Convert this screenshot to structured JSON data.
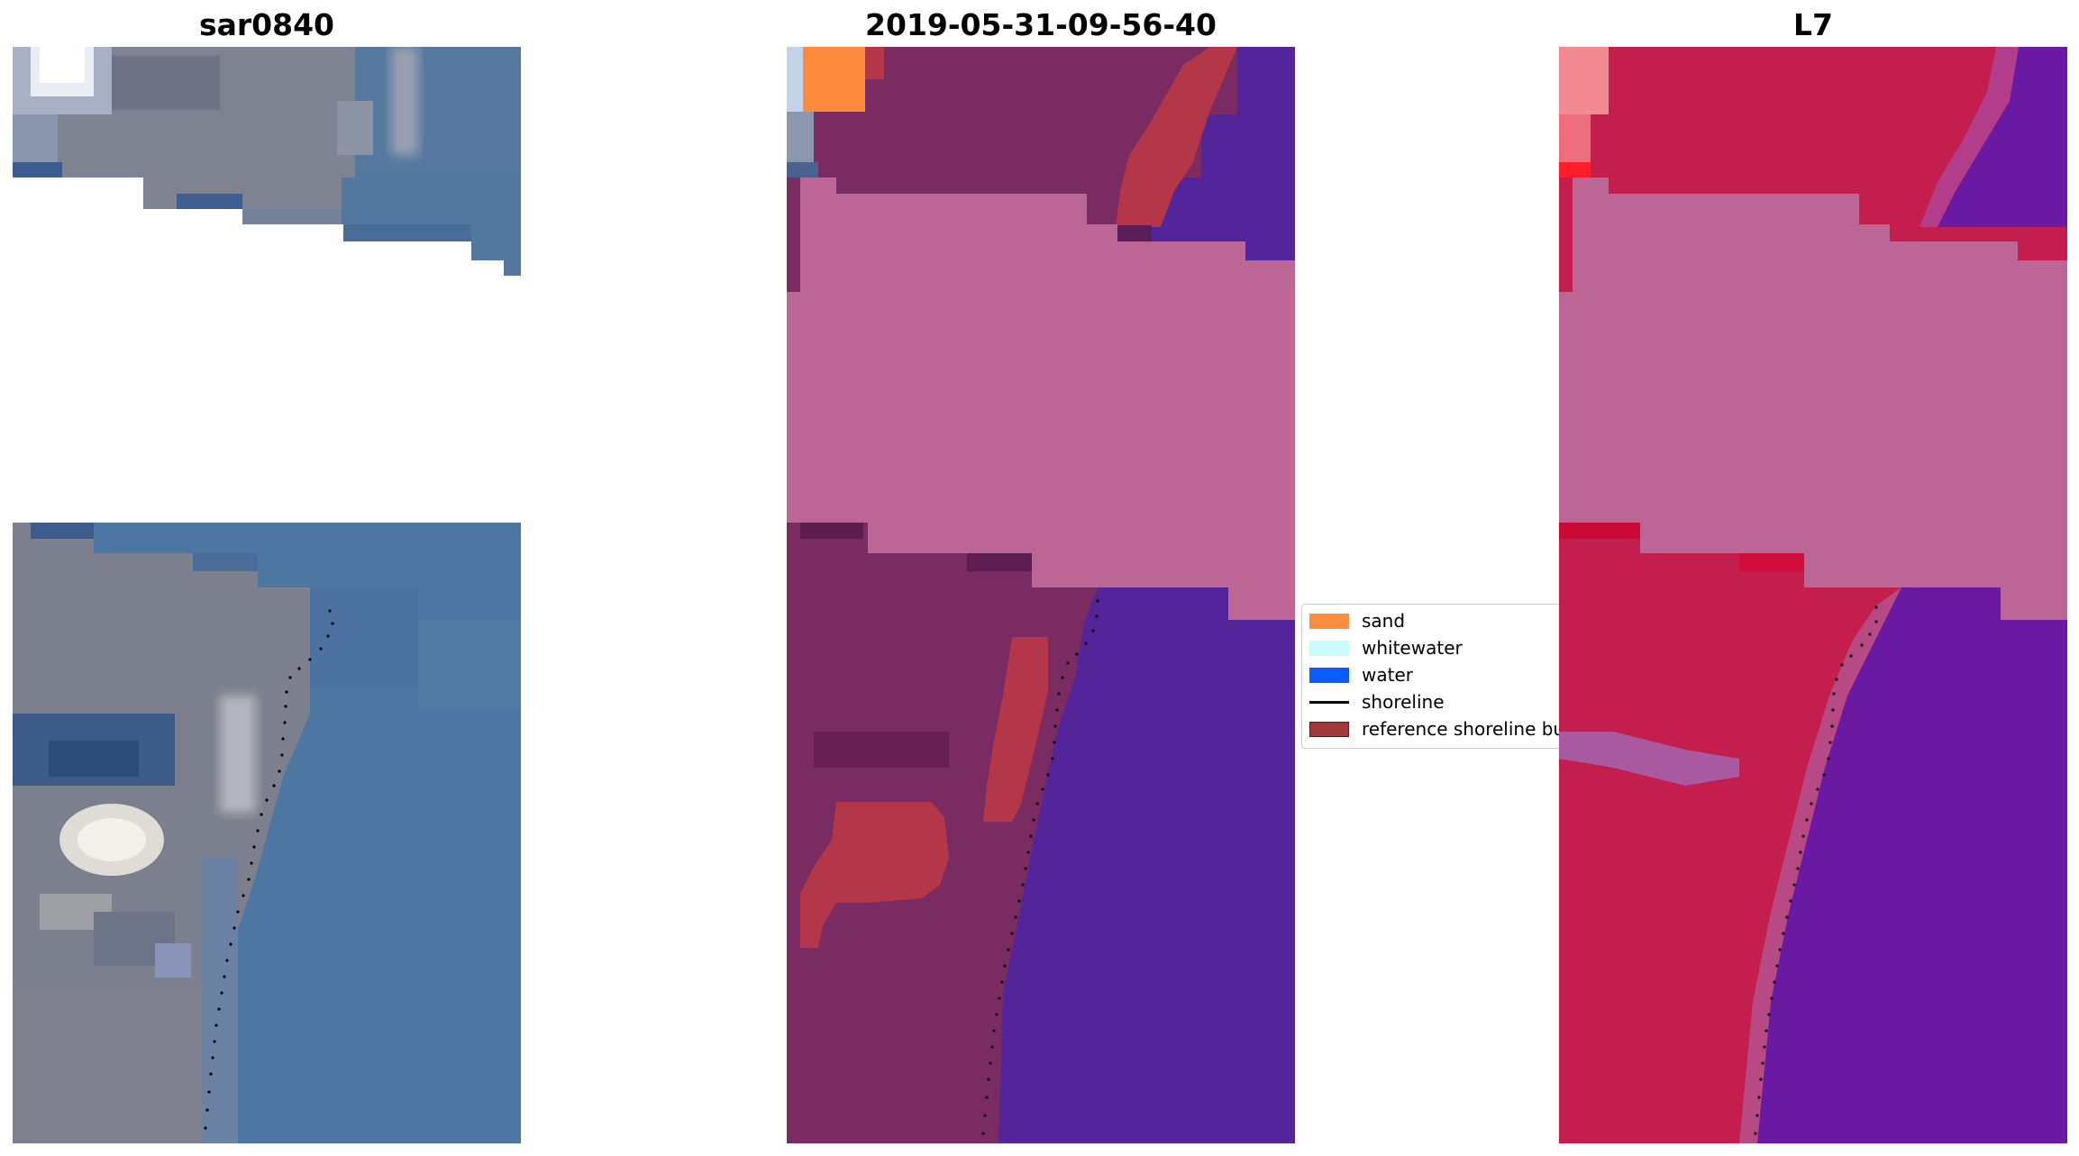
{
  "panels": [
    {
      "title": "sar0840"
    },
    {
      "title": "2019-05-31-09-56-40"
    },
    {
      "title": "L7"
    }
  ],
  "legend": {
    "items": [
      {
        "label": "sand",
        "color": "#ff8c3f",
        "kind": "patch"
      },
      {
        "label": "whitewater",
        "color": "#c8fcff",
        "kind": "patch"
      },
      {
        "label": "water",
        "color": "#0b5cff",
        "kind": "patch"
      },
      {
        "label": "shoreline",
        "color": "#000000",
        "kind": "line"
      },
      {
        "label": "reference shoreline buffer",
        "color": "#a23a3d",
        "kind": "patch"
      }
    ]
  },
  "colors": {
    "rgb_land": "#7c8090",
    "rgb_water": "#4f77a2",
    "classified_land": "#7a2b62",
    "classified_water": "#54259a",
    "classified_nodata": "#bb6695",
    "ndwi_land": "#c41e4e",
    "ndwi_water": "#6a19a3",
    "ndwi_nodata": "#bb6695"
  }
}
